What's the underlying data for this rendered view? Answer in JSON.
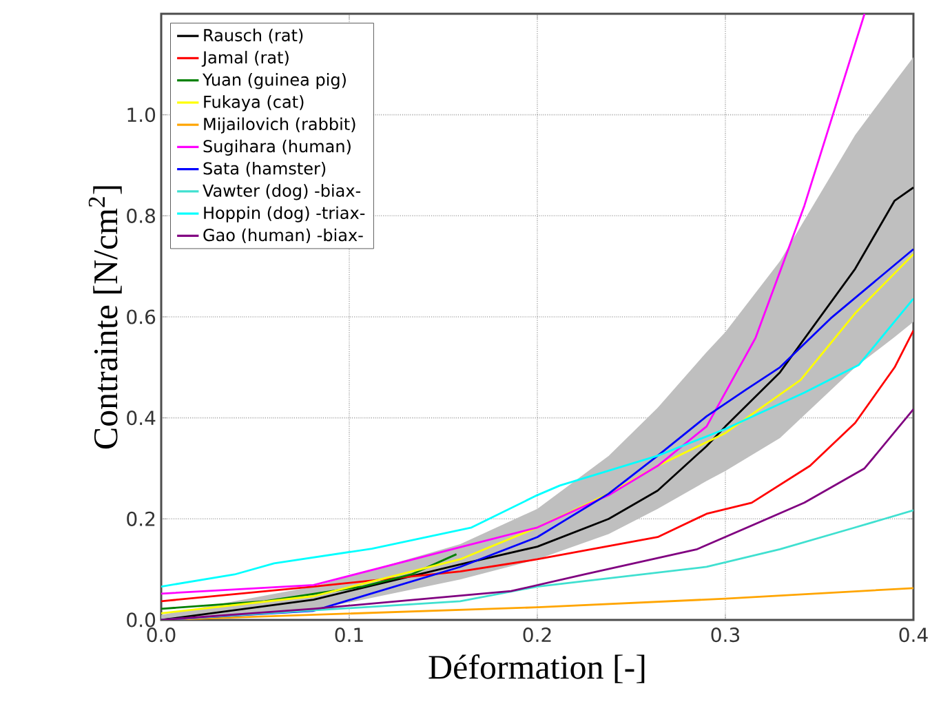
{
  "chart_data": {
    "type": "line",
    "xlabel": "Déformation [-]",
    "ylabel": "Contrainte [N/cm$^{2}$]",
    "xlim": [
      0,
      0.4
    ],
    "ylim": [
      0,
      1.2
    ],
    "xticks": [
      {
        "value": 0,
        "label": "0.0"
      },
      {
        "value": 0.1,
        "label": "0.1"
      },
      {
        "value": 0.2,
        "label": "0.2"
      },
      {
        "value": 0.3,
        "label": "0.3"
      },
      {
        "value": 0.4,
        "label": "0.4"
      }
    ],
    "yticks": [
      {
        "value": 0,
        "label": "0.0"
      },
      {
        "value": 0.2,
        "label": "0.2"
      },
      {
        "value": 0.4,
        "label": "0.4"
      },
      {
        "value": 0.6,
        "label": "0.6"
      },
      {
        "value": 0.8,
        "label": "0.8"
      },
      {
        "value": 1.0,
        "label": "1.0"
      }
    ],
    "grid": true,
    "legend": "top left",
    "marker": "none",
    "line_style": "solid",
    "series": [
      {
        "name": "Rausch (rat)",
        "color": "#000000",
        "x": [
          0,
          0.081,
          0.159,
          0.2,
          0.238,
          0.264,
          0.29,
          0.3,
          0.329,
          0.369,
          0.39,
          0.4
        ],
        "values": [
          0,
          0.04,
          0.11,
          0.145,
          0.2,
          0.256,
          0.344,
          0.383,
          0.49,
          0.695,
          0.83,
          0.856
        ],
        "lower": [
          0,
          0.02,
          0.08,
          0.12,
          0.17,
          0.22,
          0.275,
          0.295,
          0.36,
          0.5,
          0.56,
          0.59
        ],
        "upper": [
          0.01,
          0.066,
          0.15,
          0.22,
          0.325,
          0.42,
          0.53,
          0.57,
          0.71,
          0.96,
          1.065,
          1.114
        ]
      },
      {
        "name": "Jamal (rat)",
        "color": "#ff0000",
        "x": [
          0,
          0.081,
          0.159,
          0.2,
          0.264,
          0.29,
          0.314,
          0.345,
          0.369,
          0.39,
          0.4
        ],
        "values": [
          0.037,
          0.066,
          0.096,
          0.12,
          0.164,
          0.21,
          0.232,
          0.305,
          0.39,
          0.5,
          0.573
        ]
      },
      {
        "name": "Yuan (guinea pig)",
        "color": "#008000",
        "x": [
          0,
          0.055,
          0.107,
          0.133,
          0.157
        ],
        "values": [
          0.022,
          0.037,
          0.066,
          0.09,
          0.13
        ]
      },
      {
        "name": "Fukaya (cat)",
        "color": "#ffff00",
        "x": [
          0,
          0.081,
          0.159,
          0.2,
          0.238,
          0.264,
          0.3,
          0.34,
          0.369,
          0.4
        ],
        "values": [
          0.013,
          0.047,
          0.12,
          0.183,
          0.25,
          0.305,
          0.37,
          0.475,
          0.607,
          0.724
        ]
      },
      {
        "name": "Mijailovich (rabbit)",
        "color": "#ffa500",
        "x": [
          0,
          0.2,
          0.3,
          0.4
        ],
        "values": [
          0,
          0.025,
          0.042,
          0.063
        ]
      },
      {
        "name": "Sugihara (human)",
        "color": "#ff00ff",
        "x": [
          0,
          0.081,
          0.159,
          0.2,
          0.238,
          0.264,
          0.29,
          0.316,
          0.342,
          0.374
        ],
        "values": [
          0.052,
          0.069,
          0.144,
          0.183,
          0.247,
          0.305,
          0.383,
          0.558,
          0.82,
          1.2
        ]
      },
      {
        "name": "Sata (hamster)",
        "color": "#0000ff",
        "x": [
          0,
          0.081,
          0.159,
          0.2,
          0.238,
          0.264,
          0.29,
          0.311,
          0.329,
          0.356,
          0.4
        ],
        "values": [
          0,
          0.018,
          0.105,
          0.164,
          0.25,
          0.325,
          0.403,
          0.456,
          0.5,
          0.597,
          0.734
        ]
      },
      {
        "name": "Vawter (dog) -biax-",
        "color": "#40e0d0",
        "x": [
          0,
          0.159,
          0.2,
          0.29,
          0.329,
          0.369,
          0.4
        ],
        "values": [
          0,
          0.037,
          0.066,
          0.105,
          0.14,
          0.183,
          0.217
        ]
      },
      {
        "name": "Hoppin (dog) -triax-",
        "color": "#00ffff",
        "x": [
          0,
          0.039,
          0.06,
          0.112,
          0.165,
          0.2,
          0.212,
          0.264,
          0.3,
          0.342,
          0.371,
          0.4
        ],
        "values": [
          0.066,
          0.09,
          0.112,
          0.141,
          0.183,
          0.247,
          0.266,
          0.325,
          0.378,
          0.45,
          0.505,
          0.636
        ]
      },
      {
        "name": "Gao (human) -biax-",
        "color": "#800080",
        "x": [
          0,
          0.081,
          0.186,
          0.225,
          0.285,
          0.342,
          0.374,
          0.4
        ],
        "values": [
          0,
          0.022,
          0.057,
          0.09,
          0.14,
          0.232,
          0.3,
          0.417
        ]
      }
    ]
  }
}
